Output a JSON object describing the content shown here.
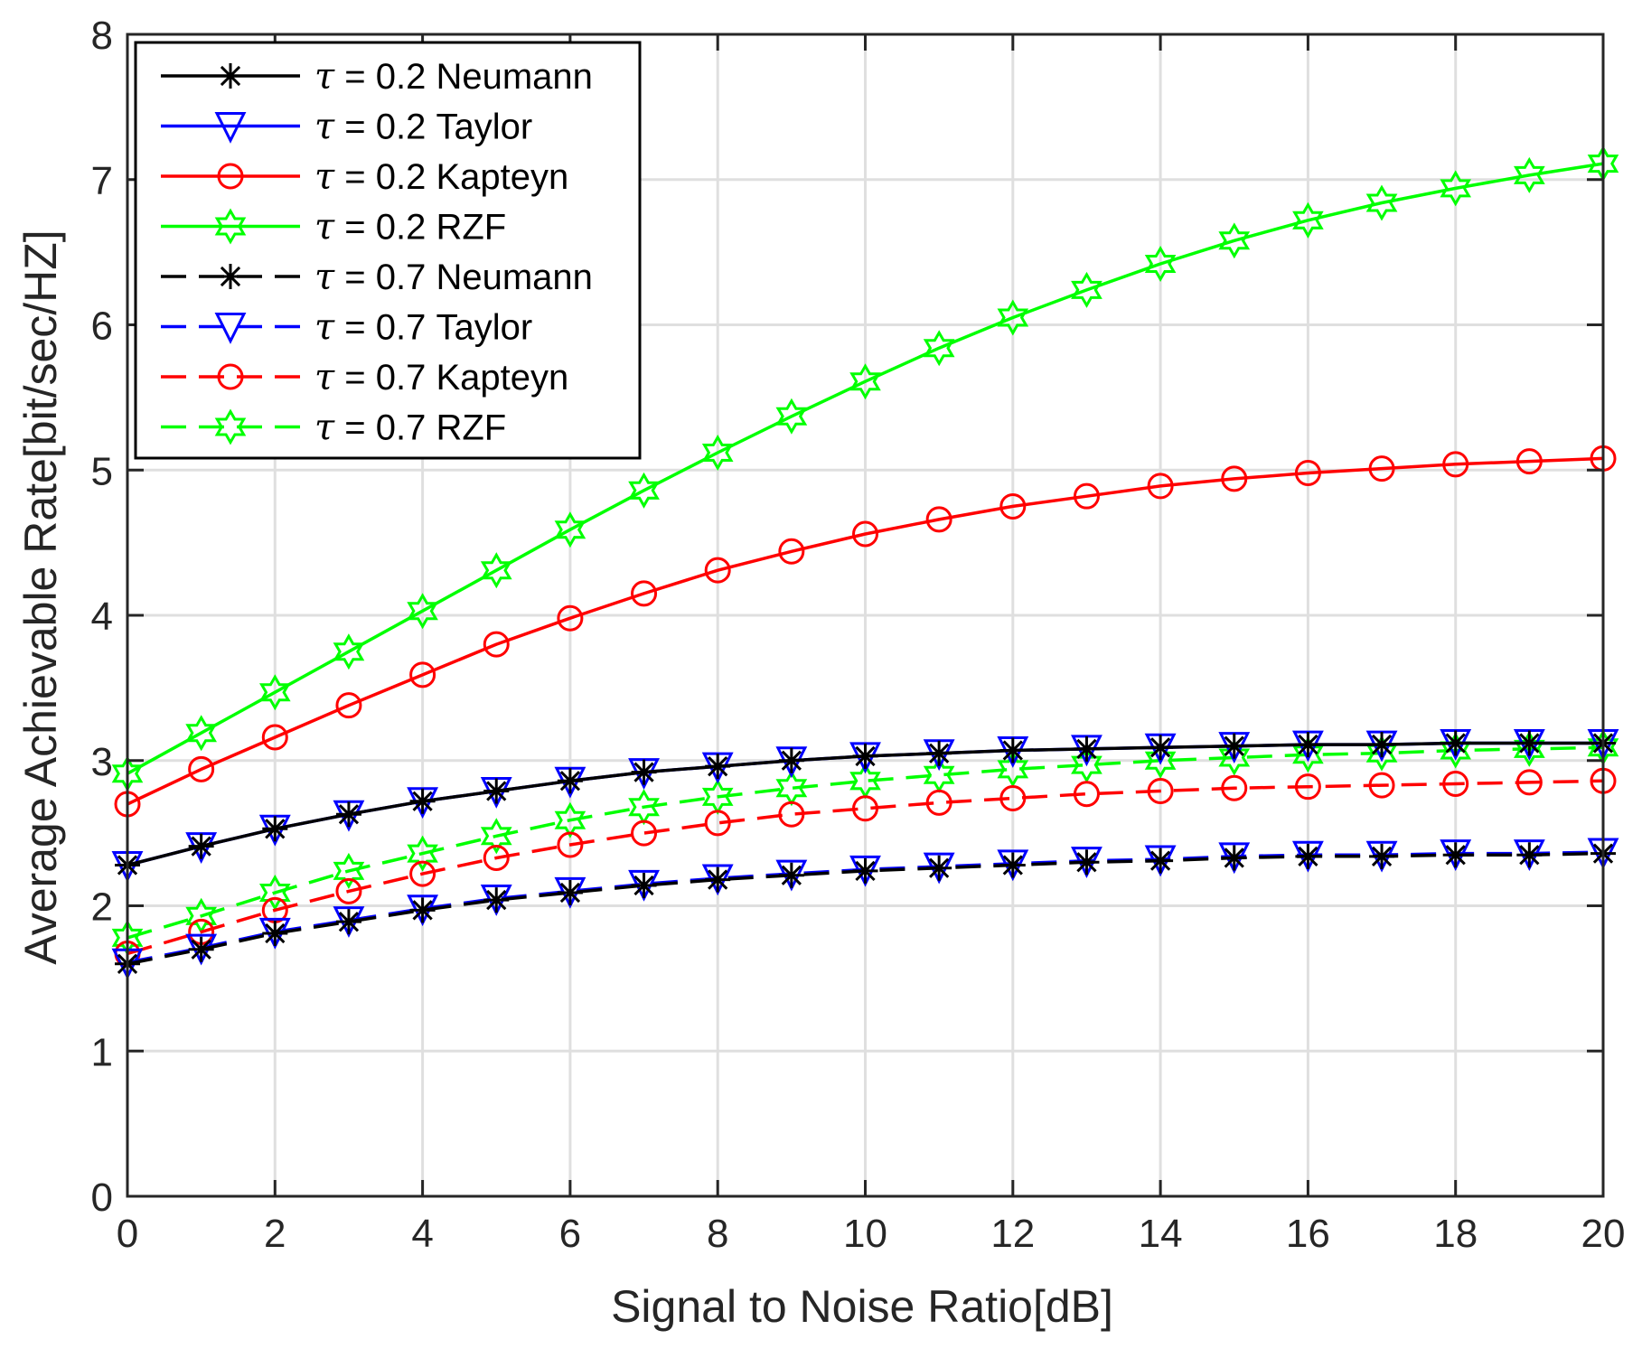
{
  "chart_data": {
    "type": "line",
    "title": "",
    "xlabel": "Signal to Noise Ratio[dB]",
    "ylabel": "Average Achievable Rate[bit/sec/HZ]",
    "xlim": [
      0,
      20
    ],
    "ylim": [
      0,
      8
    ],
    "xticks": [
      0,
      2,
      4,
      6,
      8,
      10,
      12,
      14,
      16,
      18,
      20
    ],
    "yticks": [
      0,
      1,
      2,
      3,
      4,
      5,
      6,
      7,
      8
    ],
    "grid": true,
    "legend_position": "top-left",
    "x": [
      0,
      1,
      2,
      3,
      4,
      5,
      6,
      7,
      8,
      9,
      10,
      11,
      12,
      13,
      14,
      15,
      16,
      17,
      18,
      19,
      20
    ],
    "series": [
      {
        "symbol": "τ",
        "name": " = 0.2 Neumann",
        "color": "#000000",
        "line_style": "solid",
        "marker": "asterisk",
        "values": [
          2.28,
          2.41,
          2.53,
          2.63,
          2.72,
          2.79,
          2.86,
          2.92,
          2.96,
          3.0,
          3.03,
          3.05,
          3.07,
          3.08,
          3.09,
          3.1,
          3.11,
          3.11,
          3.12,
          3.12,
          3.12
        ]
      },
      {
        "symbol": "τ",
        "name": " = 0.2 Taylor",
        "color": "#0000ff",
        "line_style": "solid",
        "marker": "triangle-down",
        "values": [
          2.28,
          2.41,
          2.53,
          2.63,
          2.72,
          2.79,
          2.86,
          2.92,
          2.96,
          3.0,
          3.03,
          3.05,
          3.07,
          3.08,
          3.09,
          3.1,
          3.11,
          3.11,
          3.12,
          3.12,
          3.12
        ]
      },
      {
        "symbol": "τ",
        "name": " = 0.2 Kapteyn",
        "color": "#ff0000",
        "line_style": "solid",
        "marker": "circle",
        "values": [
          2.7,
          2.94,
          3.16,
          3.38,
          3.59,
          3.8,
          3.98,
          4.15,
          4.31,
          4.44,
          4.56,
          4.66,
          4.75,
          4.82,
          4.89,
          4.94,
          4.98,
          5.01,
          5.04,
          5.06,
          5.08
        ]
      },
      {
        "symbol": "τ",
        "name": " = 0.2 RZF",
        "color": "#00ff00",
        "line_style": "solid",
        "marker": "hexagram",
        "values": [
          2.91,
          3.19,
          3.47,
          3.75,
          4.03,
          4.31,
          4.59,
          4.86,
          5.12,
          5.37,
          5.61,
          5.84,
          6.05,
          6.24,
          6.42,
          6.58,
          6.72,
          6.84,
          6.94,
          7.03,
          7.11
        ]
      },
      {
        "symbol": "τ",
        "name": " = 0.7 Neumann",
        "color": "#000000",
        "line_style": "dashed",
        "marker": "asterisk",
        "values": [
          1.6,
          1.7,
          1.81,
          1.89,
          1.97,
          2.04,
          2.09,
          2.14,
          2.18,
          2.21,
          2.24,
          2.26,
          2.28,
          2.3,
          2.31,
          2.33,
          2.34,
          2.34,
          2.35,
          2.35,
          2.36
        ]
      },
      {
        "symbol": "τ",
        "name": " = 0.7 Taylor",
        "color": "#0000ff",
        "line_style": "dashed",
        "marker": "triangle-down",
        "values": [
          1.61,
          1.71,
          1.82,
          1.9,
          1.98,
          2.05,
          2.1,
          2.15,
          2.19,
          2.22,
          2.25,
          2.27,
          2.29,
          2.31,
          2.32,
          2.34,
          2.35,
          2.35,
          2.36,
          2.36,
          2.37
        ]
      },
      {
        "symbol": "τ",
        "name": " = 0.7 Kapteyn",
        "color": "#ff0000",
        "line_style": "dashed",
        "marker": "circle",
        "values": [
          1.67,
          1.82,
          1.97,
          2.1,
          2.22,
          2.33,
          2.42,
          2.5,
          2.57,
          2.63,
          2.67,
          2.71,
          2.74,
          2.77,
          2.79,
          2.81,
          2.82,
          2.83,
          2.84,
          2.85,
          2.86
        ]
      },
      {
        "symbol": "τ",
        "name": " = 0.7 RZF",
        "color": "#00ff00",
        "line_style": "dashed",
        "marker": "hexagram",
        "values": [
          1.78,
          1.93,
          2.09,
          2.24,
          2.36,
          2.48,
          2.59,
          2.68,
          2.75,
          2.81,
          2.86,
          2.9,
          2.94,
          2.97,
          3.0,
          3.02,
          3.04,
          3.05,
          3.07,
          3.08,
          3.09
        ]
      }
    ]
  }
}
